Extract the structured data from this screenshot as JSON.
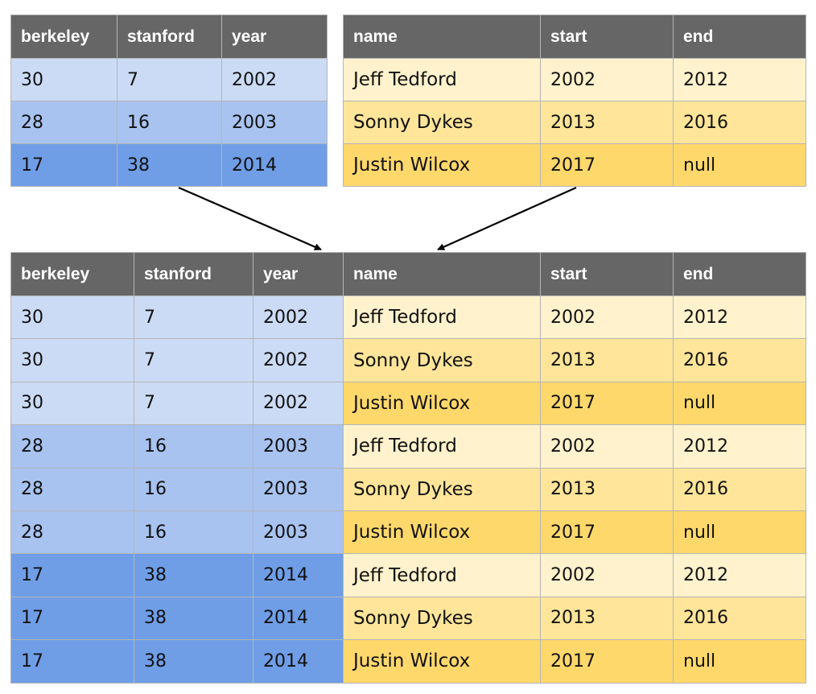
{
  "left_table": {
    "headers": [
      "berkeley",
      "stanford",
      "year"
    ],
    "rows": [
      [
        "30",
        "7",
        "2002"
      ],
      [
        "28",
        "16",
        "2003"
      ],
      [
        "17",
        "38",
        "2014"
      ]
    ]
  },
  "right_table": {
    "headers": [
      "name",
      "start",
      "end"
    ],
    "rows": [
      [
        "Jeff Tedford",
        "2002",
        "2012"
      ],
      [
        "Sonny Dykes",
        "2013",
        "2016"
      ],
      [
        "Justin Wilcox",
        "2017",
        "null"
      ]
    ]
  },
  "result_table": {
    "headers": [
      "berkeley",
      "stanford",
      "year",
      "name",
      "start",
      "end"
    ],
    "rows": [
      [
        "30",
        "7",
        "2002",
        "Jeff Tedford",
        "2002",
        "2012"
      ],
      [
        "30",
        "7",
        "2002",
        "Sonny Dykes",
        "2013",
        "2016"
      ],
      [
        "30",
        "7",
        "2002",
        "Justin Wilcox",
        "2017",
        "null"
      ],
      [
        "28",
        "16",
        "2003",
        "Jeff Tedford",
        "2002",
        "2012"
      ],
      [
        "28",
        "16",
        "2003",
        "Sonny Dykes",
        "2013",
        "2016"
      ],
      [
        "28",
        "16",
        "2003",
        "Justin Wilcox",
        "2017",
        "null"
      ],
      [
        "17",
        "38",
        "2014",
        "Jeff Tedford",
        "2002",
        "2012"
      ],
      [
        "17",
        "38",
        "2014",
        "Sonny Dykes",
        "2013",
        "2016"
      ],
      [
        "17",
        "38",
        "2014",
        "Justin Wilcox",
        "2017",
        "null"
      ]
    ]
  },
  "colors": {
    "header_bg": "#666666",
    "blue_shades": [
      "#cbdbf5",
      "#a8c3f0",
      "#6f9ee7"
    ],
    "yellow_shades": [
      "#fff2cc",
      "#ffe599",
      "#ffd86b"
    ],
    "arrow": "#000000"
  }
}
